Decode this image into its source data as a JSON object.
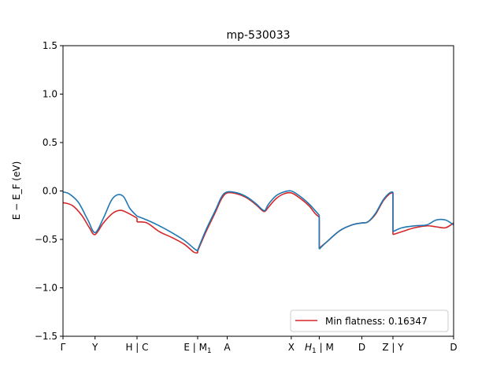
{
  "chart_data": {
    "type": "line",
    "title": "mp-530033",
    "ylabel": "E − E_F (eV)",
    "xlabel": "",
    "xlim": [
      0,
      12.56
    ],
    "ylim": [
      -1.5,
      1.5
    ],
    "grid": false,
    "legend_position": "lower-right",
    "legend_label": "Min flatness: 0.16347",
    "y_ticks": [
      {
        "value": -1.5,
        "label": "−1.5"
      },
      {
        "value": -1.0,
        "label": "−1.0"
      },
      {
        "value": -0.5,
        "label": "−0.5"
      },
      {
        "value": 0.0,
        "label": "0.0"
      },
      {
        "value": 0.5,
        "label": "0.5"
      },
      {
        "value": 1.0,
        "label": "1.0"
      },
      {
        "value": 1.5,
        "label": "1.5"
      }
    ],
    "x_ticks": [
      {
        "value": 0.0,
        "label": "Γ",
        "sub": ""
      },
      {
        "value": 1.03,
        "label": "Y",
        "sub": ""
      },
      {
        "value": 2.38,
        "label": "H | C",
        "sub": ""
      },
      {
        "value": 4.33,
        "label": "E | M",
        "sub": "1"
      },
      {
        "value": 5.28,
        "label": "A",
        "sub": ""
      },
      {
        "value": 7.34,
        "label": "X",
        "sub": ""
      },
      {
        "value": 8.24,
        "label": "H",
        "sub": "1",
        "suffix": " | M"
      },
      {
        "value": 9.61,
        "label": "D",
        "sub": ""
      },
      {
        "value": 10.61,
        "label": "Z | Y",
        "sub": ""
      },
      {
        "value": 12.56,
        "label": "D",
        "sub": ""
      }
    ],
    "series": [
      {
        "color": "#d62728",
        "segments": [
          [
            [
              0.0,
              -0.12
            ],
            [
              0.3,
              -0.15
            ],
            [
              0.6,
              -0.25
            ],
            [
              0.85,
              -0.38
            ],
            [
              1.03,
              -0.45
            ],
            [
              1.3,
              -0.33
            ],
            [
              1.6,
              -0.23
            ],
            [
              1.85,
              -0.2
            ],
            [
              2.1,
              -0.23
            ],
            [
              2.38,
              -0.28
            ]
          ],
          [
            [
              2.38,
              -0.32
            ],
            [
              2.7,
              -0.33
            ],
            [
              3.1,
              -0.42
            ],
            [
              3.5,
              -0.48
            ],
            [
              3.9,
              -0.55
            ],
            [
              4.2,
              -0.63
            ],
            [
              4.33,
              -0.64
            ]
          ],
          [
            [
              4.33,
              -0.62
            ],
            [
              4.6,
              -0.42
            ],
            [
              4.9,
              -0.22
            ],
            [
              5.1,
              -0.08
            ],
            [
              5.28,
              -0.02
            ],
            [
              5.6,
              -0.03
            ],
            [
              5.9,
              -0.07
            ],
            [
              6.2,
              -0.14
            ],
            [
              6.4,
              -0.2
            ],
            [
              6.5,
              -0.21
            ],
            [
              6.6,
              -0.17
            ],
            [
              6.85,
              -0.08
            ],
            [
              7.1,
              -0.03
            ],
            [
              7.34,
              -0.02
            ],
            [
              7.6,
              -0.07
            ],
            [
              7.9,
              -0.15
            ],
            [
              8.1,
              -0.23
            ],
            [
              8.24,
              -0.27
            ]
          ],
          [
            [
              8.24,
              -0.59
            ],
            [
              8.5,
              -0.52
            ],
            [
              8.9,
              -0.41
            ],
            [
              9.3,
              -0.35
            ],
            [
              9.61,
              -0.33
            ],
            [
              9.8,
              -0.32
            ],
            [
              10.05,
              -0.24
            ],
            [
              10.3,
              -0.1
            ],
            [
              10.5,
              -0.03
            ],
            [
              10.61,
              -0.02
            ]
          ],
          [
            [
              10.61,
              -0.45
            ],
            [
              10.9,
              -0.42
            ],
            [
              11.3,
              -0.38
            ],
            [
              11.7,
              -0.36
            ],
            [
              12.0,
              -0.37
            ],
            [
              12.3,
              -0.38
            ],
            [
              12.56,
              -0.33
            ]
          ]
        ]
      },
      {
        "color": "#1f77b4",
        "segments": [
          [
            [
              0.0,
              -0.01
            ],
            [
              0.2,
              -0.03
            ],
            [
              0.5,
              -0.12
            ],
            [
              0.8,
              -0.3
            ],
            [
              1.03,
              -0.43
            ],
            [
              1.3,
              -0.28
            ],
            [
              1.55,
              -0.1
            ],
            [
              1.75,
              -0.04
            ],
            [
              1.95,
              -0.06
            ],
            [
              2.15,
              -0.18
            ],
            [
              2.38,
              -0.26
            ]
          ],
          [
            [
              2.38,
              -0.26
            ],
            [
              2.7,
              -0.3
            ],
            [
              3.1,
              -0.36
            ],
            [
              3.5,
              -0.43
            ],
            [
              3.9,
              -0.51
            ],
            [
              4.2,
              -0.59
            ],
            [
              4.33,
              -0.62
            ]
          ],
          [
            [
              4.33,
              -0.61
            ],
            [
              4.6,
              -0.4
            ],
            [
              4.9,
              -0.2
            ],
            [
              5.1,
              -0.06
            ],
            [
              5.28,
              -0.01
            ],
            [
              5.6,
              -0.02
            ],
            [
              5.9,
              -0.06
            ],
            [
              6.2,
              -0.13
            ],
            [
              6.4,
              -0.19
            ],
            [
              6.5,
              -0.2
            ],
            [
              6.6,
              -0.14
            ],
            [
              6.85,
              -0.05
            ],
            [
              7.1,
              -0.01
            ],
            [
              7.34,
              0.0
            ],
            [
              7.6,
              -0.05
            ],
            [
              7.9,
              -0.13
            ],
            [
              8.1,
              -0.2
            ],
            [
              8.24,
              -0.25
            ]
          ],
          [
            [
              8.24,
              -0.6
            ],
            [
              8.5,
              -0.52
            ],
            [
              8.9,
              -0.41
            ],
            [
              9.3,
              -0.35
            ],
            [
              9.61,
              -0.33
            ],
            [
              9.8,
              -0.32
            ],
            [
              10.05,
              -0.23
            ],
            [
              10.3,
              -0.09
            ],
            [
              10.5,
              -0.02
            ],
            [
              10.61,
              -0.01
            ]
          ],
          [
            [
              10.61,
              -0.42
            ],
            [
              10.9,
              -0.38
            ],
            [
              11.3,
              -0.36
            ],
            [
              11.7,
              -0.35
            ],
            [
              12.0,
              -0.3
            ],
            [
              12.3,
              -0.3
            ],
            [
              12.56,
              -0.35
            ]
          ]
        ]
      }
    ]
  }
}
